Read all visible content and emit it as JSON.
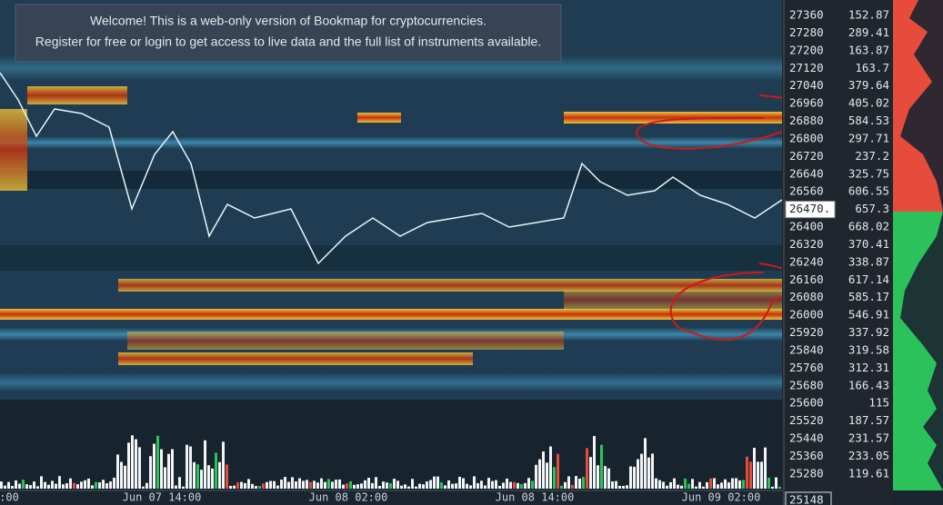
{
  "banner": {
    "line1": "Welcome! This is a web-only version of Bookmap for cryptocurrencies.",
    "line2": "Register for free or login to get access to live data and the full list of instruments available."
  },
  "ladder": [
    {
      "price": "27360",
      "size": "152.87"
    },
    {
      "price": "27280",
      "size": "289.41"
    },
    {
      "price": "27200",
      "size": "163.87"
    },
    {
      "price": "27120",
      "size": "163.7"
    },
    {
      "price": "27040",
      "size": "379.64"
    },
    {
      "price": "26960",
      "size": "405.02"
    },
    {
      "price": "26880",
      "size": "584.53"
    },
    {
      "price": "26800",
      "size": "297.71"
    },
    {
      "price": "26720",
      "size": "237.2"
    },
    {
      "price": "26640",
      "size": "325.75"
    },
    {
      "price": "26560",
      "size": "606.55"
    },
    {
      "price": "26470.",
      "size": "657.3"
    },
    {
      "price": "26400",
      "size": "668.02"
    },
    {
      "price": "26320",
      "size": "370.41"
    },
    {
      "price": "26240",
      "size": "338.87"
    },
    {
      "price": "26160",
      "size": "617.14"
    },
    {
      "price": "26080",
      "size": "585.17"
    },
    {
      "price": "26000",
      "size": "546.91"
    },
    {
      "price": "25920",
      "size": "337.92"
    },
    {
      "price": "25840",
      "size": "319.58"
    },
    {
      "price": "25760",
      "size": "312.31"
    },
    {
      "price": "25680",
      "size": "166.43"
    },
    {
      "price": "25600",
      "size": "115"
    },
    {
      "price": "25520",
      "size": "187.57"
    },
    {
      "price": "25440",
      "size": "231.57"
    },
    {
      "price": "25360",
      "size": "233.05"
    },
    {
      "price": "25280",
      "size": "119.61"
    }
  ],
  "bottom_price": "25148",
  "time_labels": [
    ":00",
    "Jun 07 14:00",
    "Jun 08 02:00",
    "Jun 08 14:00",
    "Jun 09 02:00"
  ]
}
